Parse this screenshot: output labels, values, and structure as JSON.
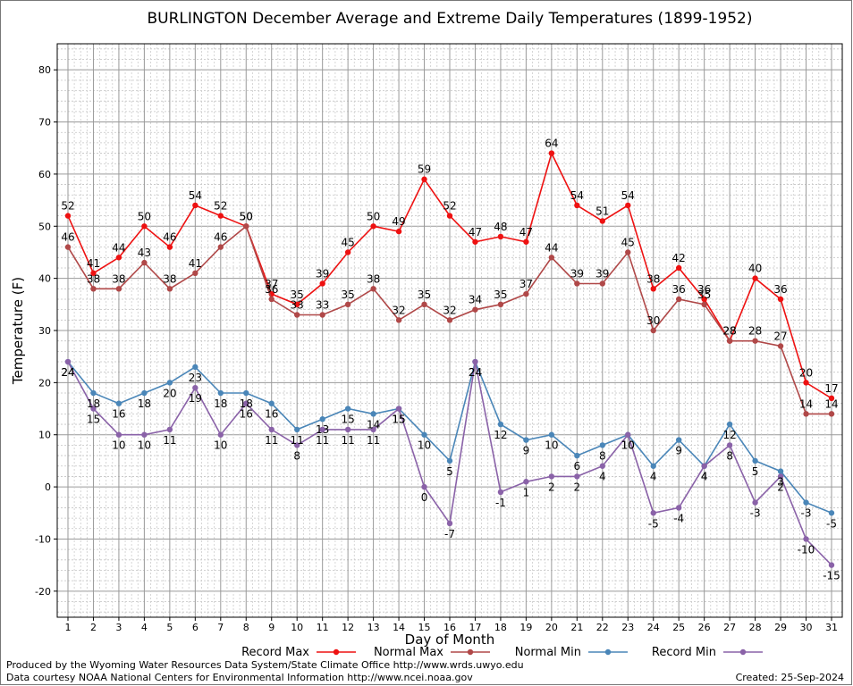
{
  "chart_data": {
    "type": "line",
    "title": "BURLINGTON December Average and Extreme Daily Temperatures (1899-1952)",
    "xlabel": "Day of Month",
    "ylabel": "Temperature (F)",
    "ylim": [
      -25,
      85
    ],
    "yticks": [
      -20,
      -10,
      0,
      10,
      20,
      30,
      40,
      50,
      60,
      70,
      80
    ],
    "grid": true,
    "legend_position": "bottom",
    "x": [
      1,
      2,
      3,
      4,
      5,
      6,
      7,
      8,
      9,
      10,
      11,
      12,
      13,
      14,
      15,
      16,
      17,
      18,
      19,
      20,
      21,
      22,
      23,
      24,
      25,
      26,
      27,
      28,
      29,
      30,
      31
    ],
    "series": [
      {
        "name": "Record Max",
        "color": "#ee1111",
        "label_pos": "above",
        "values": [
          52,
          41,
          44,
          50,
          46,
          54,
          52,
          50,
          37,
          35,
          39,
          45,
          50,
          49,
          59,
          52,
          47,
          48,
          47,
          64,
          54,
          51,
          54,
          38,
          42,
          36,
          28,
          40,
          36,
          20,
          17
        ]
      },
      {
        "name": "Normal Max",
        "color": "#b04848",
        "label_pos": "above",
        "values": [
          46,
          38,
          38,
          43,
          38,
          41,
          46,
          50,
          36,
          33,
          33,
          35,
          38,
          32,
          35,
          32,
          34,
          35,
          37,
          44,
          39,
          39,
          45,
          30,
          36,
          35,
          28,
          28,
          27,
          14,
          14
        ]
      },
      {
        "name": "Normal Min",
        "color": "#4a86b8",
        "label_pos": "below",
        "values": [
          24,
          18,
          16,
          18,
          20,
          23,
          18,
          18,
          16,
          11,
          13,
          15,
          14,
          15,
          10,
          5,
          24,
          12,
          9,
          10,
          6,
          8,
          10,
          4,
          9,
          4,
          12,
          5,
          3,
          -3,
          -5
        ]
      },
      {
        "name": "Record Min",
        "color": "#8a62a8",
        "label_pos": "below",
        "values": [
          24,
          15,
          10,
          10,
          11,
          19,
          10,
          16,
          11,
          8,
          11,
          11,
          11,
          15,
          0,
          -7,
          24,
          -1,
          1,
          2,
          2,
          4,
          10,
          -5,
          -4,
          4,
          8,
          -3,
          2,
          -10,
          -15
        ]
      }
    ]
  },
  "footer": {
    "produced_by": "Produced by the Wyoming Water Resources Data System/State Climate Office http://www.wrds.uwyo.edu",
    "data_courtesy": "Data courtesy NOAA National Centers for Environmental Information http://www.ncei.noaa.gov",
    "created": "Created: 25-Sep-2024"
  }
}
